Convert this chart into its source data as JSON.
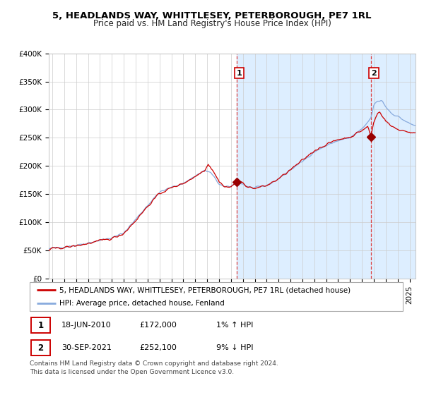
{
  "title_line1": "5, HEADLANDS WAY, WHITTLESEY, PETERBOROUGH, PE7 1RL",
  "title_line2": "Price paid vs. HM Land Registry's House Price Index (HPI)",
  "ylim": [
    0,
    400000
  ],
  "xlim_start": 1994.7,
  "xlim_end": 2025.5,
  "yticks": [
    0,
    50000,
    100000,
    150000,
    200000,
    250000,
    300000,
    350000,
    400000
  ],
  "ytick_labels": [
    "£0",
    "£50K",
    "£100K",
    "£150K",
    "£200K",
    "£250K",
    "£300K",
    "£350K",
    "£400K"
  ],
  "background_color": "#ffffff",
  "shaded_region_color": "#ddeeff",
  "grid_color": "#cccccc",
  "hpi_line_color": "#88aadd",
  "price_line_color": "#cc0000",
  "marker_color": "#990000",
  "dashed_line_color": "#dd4444",
  "purchase1_x": 2010.46,
  "purchase1_y": 172000,
  "purchase1_label": "1",
  "purchase2_x": 2021.75,
  "purchase2_y": 252100,
  "purchase2_label": "2",
  "legend_line1": "5, HEADLANDS WAY, WHITTLESEY, PETERBOROUGH, PE7 1RL (detached house)",
  "legend_line2": "HPI: Average price, detached house, Fenland",
  "table_row1": [
    "1",
    "18-JUN-2010",
    "£172,000",
    "1% ↑ HPI"
  ],
  "table_row2": [
    "2",
    "30-SEP-2021",
    "£252,100",
    "9% ↓ HPI"
  ],
  "footnote": "Contains HM Land Registry data © Crown copyright and database right 2024.\nThis data is licensed under the Open Government Licence v3.0.",
  "title_fontsize": 9.5,
  "subtitle_fontsize": 8.5,
  "tick_fontsize": 7.5,
  "legend_fontsize": 7.5,
  "table_fontsize": 8,
  "footnote_fontsize": 6.5
}
